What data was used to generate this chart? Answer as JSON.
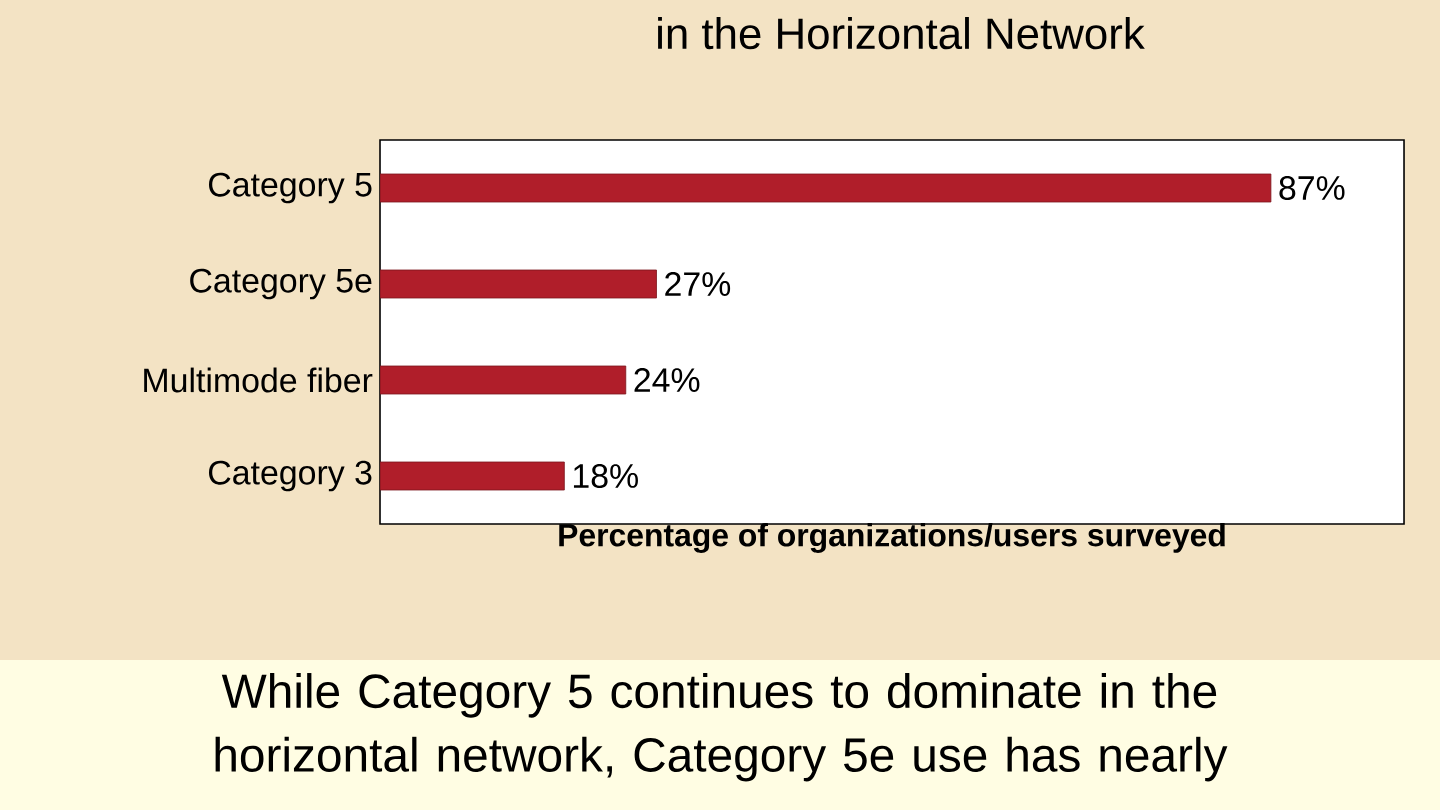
{
  "chart_data": {
    "type": "bar",
    "orientation": "horizontal",
    "title": "in the Horizontal Network",
    "categories": [
      "Category 5",
      "Category 5e",
      "Multimode fiber",
      "Category 3"
    ],
    "values": [
      87,
      27,
      24,
      18
    ],
    "color": "#b01e2a",
    "value_labels": [
      "87%",
      "27%",
      "24%",
      "18%"
    ],
    "xlim": [
      0,
      100
    ],
    "tick_labels": "y",
    "xlabel": "Percentage of organizations/users surveyed",
    "annotations": [
      "While Category 5 continues to dominate in the horizontal network, Category 5e use has nearly"
    ]
  }
}
